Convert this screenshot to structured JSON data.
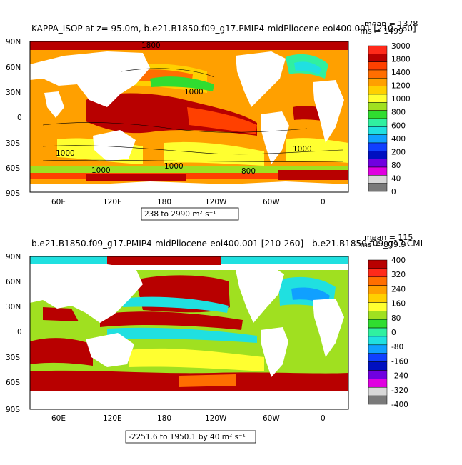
{
  "panels": [
    {
      "title": "KAPPA_ISOP at z=  95.0m, b.e21.B1850.f09_g17.PMIP4-midPliocene-eoi400.001 [210-260]",
      "mean": "mean = 1378",
      "rms": "rms = 1499",
      "range_note": "238 to 2990 m² s⁻¹",
      "lat_ticks": [
        "90N",
        "60N",
        "30N",
        "0",
        "30S",
        "60S",
        "90S"
      ],
      "lon_ticks": [
        "60E",
        "120E",
        "180",
        "120W",
        "60W",
        "0"
      ],
      "colorbar_labels": [
        "3000",
        "1800",
        "1400",
        "1200",
        "1000",
        "800",
        "600",
        "400",
        "200",
        "80",
        "40",
        "0"
      ],
      "colorbar_colors": [
        "#ff2a1a",
        "#b80000",
        "#ff4000",
        "#ff6e00",
        "#ffa000",
        "#ffd000",
        "#ffff30",
        "#a0e020",
        "#30dd30",
        "#30f0a0",
        "#20e0e0",
        "#10a0ff",
        "#1040ff",
        "#0010c0",
        "#7000e0",
        "#e000e0",
        "#d8d8d8",
        "#7a7a7a"
      ],
      "contour_labels": [
        "1800",
        "1000",
        "1000",
        "800",
        "1000",
        "1000",
        "1000"
      ]
    },
    {
      "title": "b.e21.B1850.f09_g17.PMIP4-midPliocene-eoi400.001 [210-260] - b.e21.B1850.f09_g17.CMI",
      "mean": "mean = 115",
      "rms": "rms = 879.9",
      "range_note": "-2251.6 to 1950.1 by 40 m² s⁻¹",
      "lat_ticks": [
        "90N",
        "60N",
        "30N",
        "0",
        "30S",
        "60S",
        "90S"
      ],
      "lon_ticks": [
        "60E",
        "120E",
        "180",
        "120W",
        "60W",
        "0"
      ],
      "colorbar_labels": [
        "400",
        "320",
        "240",
        "160",
        "80",
        "0",
        "-80",
        "-160",
        "-240",
        "-320",
        "-400"
      ],
      "colorbar_colors": [
        "#b80000",
        "#ff2a1a",
        "#ff6e00",
        "#ffa000",
        "#ffd000",
        "#ffff30",
        "#a0e020",
        "#30dd30",
        "#30f0a0",
        "#20e0e0",
        "#10a0ff",
        "#1040ff",
        "#0010c0",
        "#7000e0",
        "#e000e0",
        "#d8d8d8",
        "#7a7a7a"
      ]
    }
  ],
  "palette": {
    "ocean_high": "#b80000",
    "land": "#ffffff",
    "missing": "#ffffff"
  }
}
